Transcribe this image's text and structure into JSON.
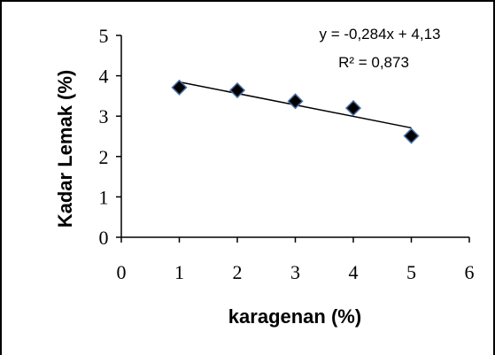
{
  "chart_data": {
    "type": "scatter",
    "title": "",
    "xlabel": "karagenan (%)",
    "ylabel": "Kadar Lemak (%)",
    "xlim": [
      0,
      6
    ],
    "ylim": [
      0,
      5
    ],
    "x_ticks": [
      "0",
      "1",
      "2",
      "3",
      "4",
      "5",
      "6"
    ],
    "y_ticks": [
      "0",
      "1",
      "2",
      "3",
      "4",
      "5"
    ],
    "grid": false,
    "legend": "none",
    "series": [
      {
        "marker": "diamond",
        "color": "#000000",
        "edge_color": "#4a6fa5",
        "points": [
          {
            "x": 1,
            "y": 3.71
          },
          {
            "x": 2,
            "y": 3.64
          },
          {
            "x": 3,
            "y": 3.37
          },
          {
            "x": 4,
            "y": 3.2
          },
          {
            "x": 5,
            "y": 2.51
          }
        ]
      }
    ],
    "trendline": {
      "type": "linear",
      "slope": -0.284,
      "intercept": 4.13,
      "x_range": [
        1,
        5
      ],
      "equation_label": "y = -0,284x + 4,13",
      "r2_label": "R² = 0,873"
    }
  }
}
